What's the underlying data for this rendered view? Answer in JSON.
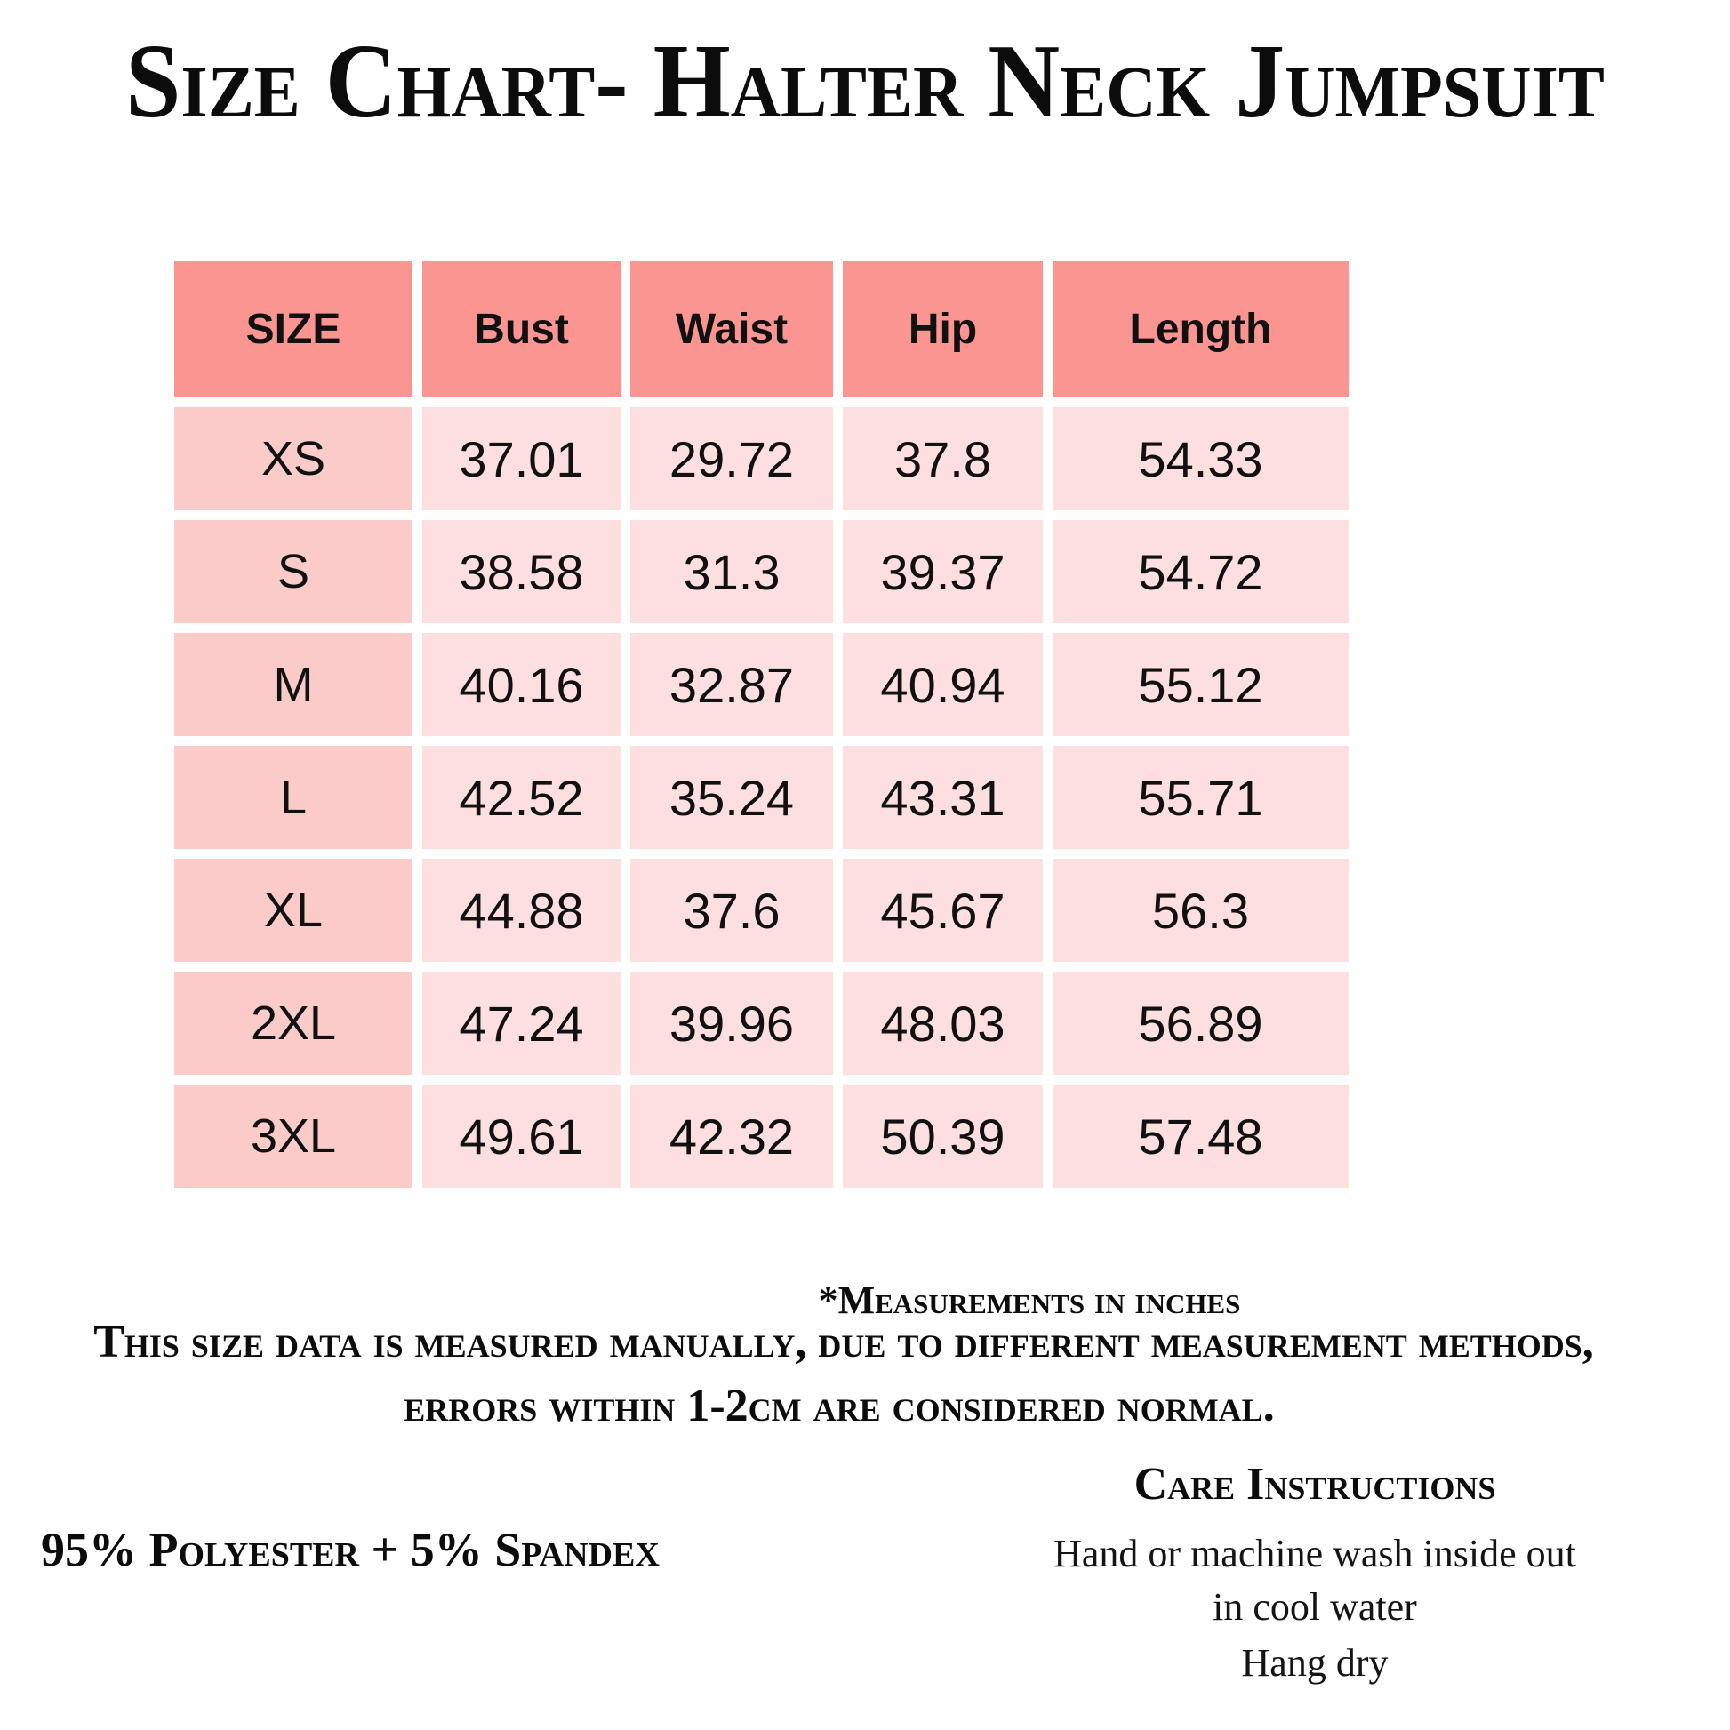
{
  "page": {
    "title": "Size Chart- Halter Neck Jumpsuit"
  },
  "colors": {
    "header_bg": "#FA9592",
    "size_cell_bg": "#FBCBCA",
    "data_cell_bg": "#FCDFDE",
    "text": "#111111",
    "page_bg": "#FFFFFF"
  },
  "table": {
    "columns": [
      "SIZE",
      "Bust",
      "Waist",
      "Hip",
      "Length"
    ],
    "rows": [
      [
        "XS",
        "37.01",
        "29.72",
        "37.8",
        "54.33"
      ],
      [
        "S",
        "38.58",
        "31.3",
        "39.37",
        "54.72"
      ],
      [
        "M",
        "40.16",
        "32.87",
        "40.94",
        "55.12"
      ],
      [
        "L",
        "42.52",
        "35.24",
        "43.31",
        "55.71"
      ],
      [
        "XL",
        "44.88",
        "37.6",
        "45.67",
        "56.3"
      ],
      [
        "2XL",
        "47.24",
        "39.96",
        "48.03",
        "56.89"
      ],
      [
        "3XL",
        "49.61",
        "42.32",
        "50.39",
        "57.48"
      ]
    ]
  },
  "chart_data": {
    "type": "table",
    "title": "Size Chart- Halter Neck Jumpsuit",
    "columns": [
      "SIZE",
      "Bust",
      "Waist",
      "Hip",
      "Length"
    ],
    "units": "inches",
    "rows": [
      {
        "size": "XS",
        "bust": 37.01,
        "waist": 29.72,
        "hip": 37.8,
        "length": 54.33
      },
      {
        "size": "S",
        "bust": 38.58,
        "waist": 31.3,
        "hip": 39.37,
        "length": 54.72
      },
      {
        "size": "M",
        "bust": 40.16,
        "waist": 32.87,
        "hip": 40.94,
        "length": 55.12
      },
      {
        "size": "L",
        "bust": 42.52,
        "waist": 35.24,
        "hip": 43.31,
        "length": 55.71
      },
      {
        "size": "XL",
        "bust": 44.88,
        "waist": 37.6,
        "hip": 45.67,
        "length": 56.3
      },
      {
        "size": "2XL",
        "bust": 47.24,
        "waist": 39.96,
        "hip": 48.03,
        "length": 56.89
      },
      {
        "size": "3XL",
        "bust": 49.61,
        "waist": 42.32,
        "hip": 50.39,
        "length": 57.48
      }
    ]
  },
  "notes": {
    "units": "*Measurements in inches",
    "disclaimer_line1": "This size data is measured manually, due to different measurement methods,",
    "disclaimer_line2": "errors within 1-2cm are considered normal."
  },
  "material": "95% Polyester + 5% Spandex",
  "care": {
    "heading": "Care Instructions",
    "lines": [
      "Hand or machine wash inside out",
      "in cool water",
      "Hang dry"
    ]
  }
}
